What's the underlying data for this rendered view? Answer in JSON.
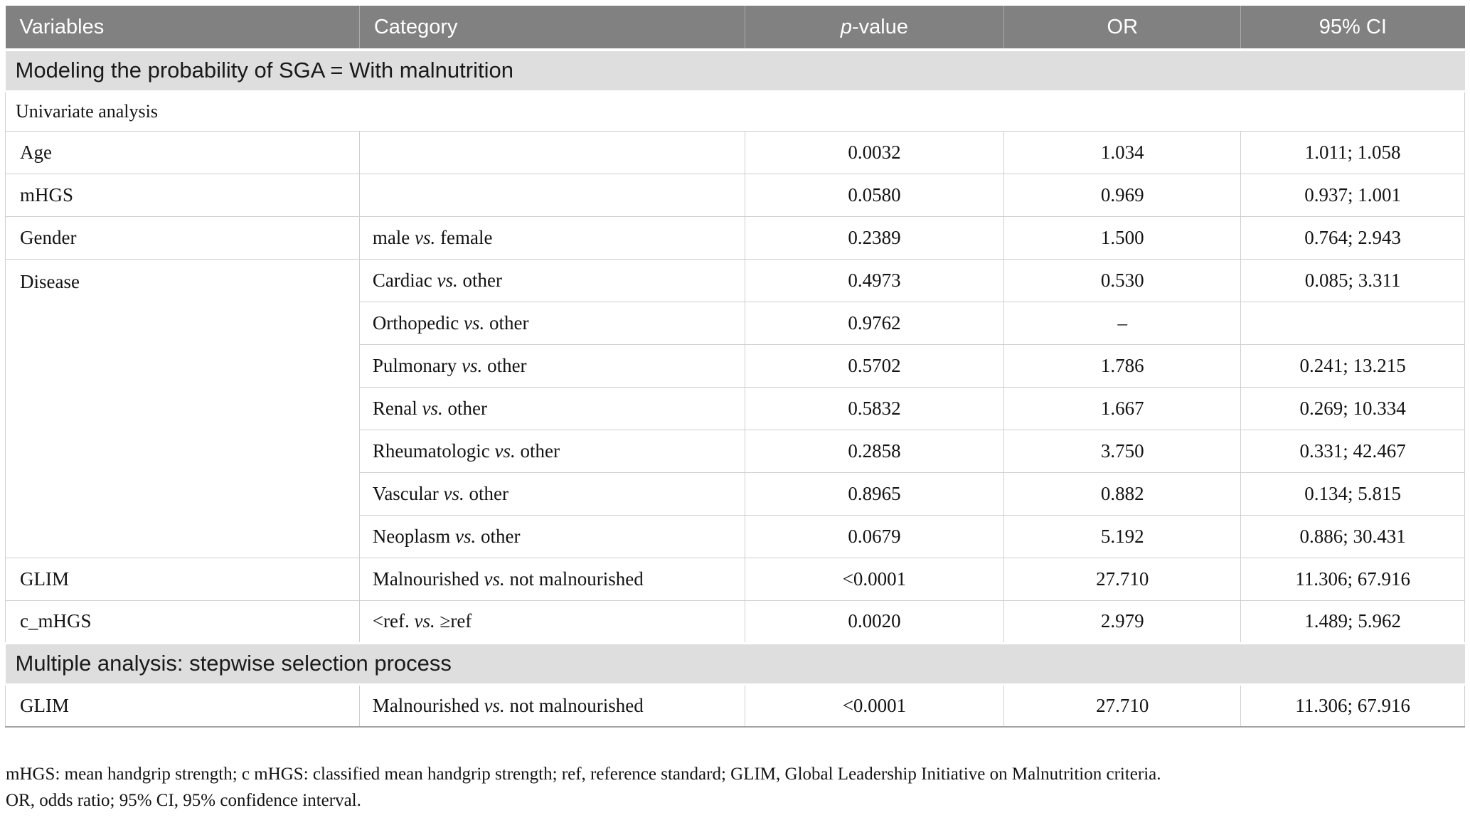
{
  "table": {
    "columns": [
      "Variables",
      "Category",
      "p-value",
      "OR",
      "95% CI"
    ],
    "rows": [
      {
        "type": "section",
        "label": "Modeling the probability of SGA = With malnutrition"
      },
      {
        "type": "subheader",
        "label": "Univariate analysis"
      },
      {
        "type": "data",
        "variable": "Age",
        "category": "",
        "p": "0.0032",
        "or": "1.034",
        "ci": "1.011; 1.058"
      },
      {
        "type": "data",
        "variable": "mHGS",
        "category": "",
        "p": "0.0580",
        "or": "0.969",
        "ci": "0.937; 1.001"
      },
      {
        "type": "data",
        "variable": "Gender",
        "category": "male vs. female",
        "p": "0.2389",
        "or": "1.500",
        "ci": "0.764; 2.943"
      },
      {
        "type": "data",
        "variable": "Disease",
        "var_rowspan": 7,
        "category": "Cardiac vs. other",
        "p": "0.4973",
        "or": "0.530",
        "ci": "0.085; 3.311"
      },
      {
        "type": "data",
        "category": "Orthopedic vs. other",
        "p": "0.9762",
        "or": "–",
        "ci": ""
      },
      {
        "type": "data",
        "category": "Pulmonary vs. other",
        "p": "0.5702",
        "or": "1.786",
        "ci": "0.241; 13.215"
      },
      {
        "type": "data",
        "category": "Renal vs. other",
        "p": "0.5832",
        "or": "1.667",
        "ci": "0.269; 10.334"
      },
      {
        "type": "data",
        "category": "Rheumatologic vs. other",
        "p": "0.2858",
        "or": "3.750",
        "ci": "0.331; 42.467"
      },
      {
        "type": "data",
        "category": "Vascular vs. other",
        "p": "0.8965",
        "or": "0.882",
        "ci": "0.134; 5.815"
      },
      {
        "type": "data",
        "category": "Neoplasm vs. other",
        "p": "0.0679",
        "or": "5.192",
        "ci": "0.886; 30.431"
      },
      {
        "type": "data",
        "variable": "GLIM",
        "category": "Malnourished vs. not malnourished",
        "p": "<0.0001",
        "or": "27.710",
        "ci": "11.306; 67.916"
      },
      {
        "type": "data",
        "variable": "c_mHGS",
        "category": "<ref. vs. ≥ref",
        "p": "0.0020",
        "or": "2.979",
        "ci": "1.489; 5.962"
      },
      {
        "type": "section",
        "label": "Multiple analysis: stepwise selection process"
      },
      {
        "type": "data",
        "variable": "GLIM",
        "category": "Malnourished vs. not malnourished",
        "p": "<0.0001",
        "or": "27.710",
        "ci": "11.306; 67.916"
      }
    ],
    "footnotes": [
      "mHGS: mean handgrip strength; c mHGS: classified mean handgrip strength; ref, reference standard; GLIM, Global Leadership Initiative on Malnutrition criteria.",
      "OR, odds ratio; 95% CI, 95% confidence interval."
    ]
  },
  "colors": {
    "header_bg": "#818181",
    "section_bg": "#dedede",
    "border": "#cfcfcf",
    "header_text": "#ffffff",
    "body_text": "#131313"
  }
}
